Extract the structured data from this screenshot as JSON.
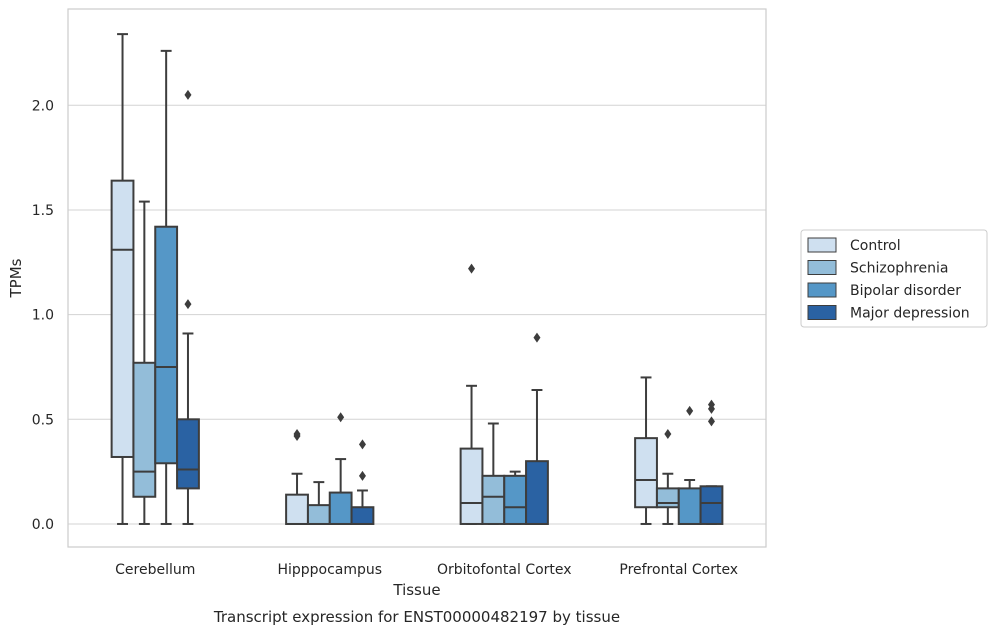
{
  "chart_data": {
    "type": "boxplot",
    "title": "Transcript expression for ENST00000482197 by tissue",
    "xlabel": "Tissue",
    "ylabel": "TPMs",
    "ylim": [
      -0.11,
      2.46
    ],
    "yticks": [
      "0.0",
      "0.5",
      "1.0",
      "1.5",
      "2.0"
    ],
    "grid": "horizontal",
    "legend_position": "right",
    "categories": [
      "Cerebellum",
      "Hipppocampus",
      "Orbitofontal Cortex",
      "Prefrontal Cortex"
    ],
    "series": [
      {
        "name": "Control",
        "color": "#cfe0f0",
        "boxes": [
          {
            "whislo": 0.0,
            "q1": 0.32,
            "med": 1.31,
            "q3": 1.64,
            "whishi": 2.34,
            "fliers": []
          },
          {
            "whislo": 0.0,
            "q1": 0.0,
            "med": 0.0,
            "q3": 0.14,
            "whishi": 0.24,
            "fliers": [
              0.42,
              0.43
            ]
          },
          {
            "whislo": 0.0,
            "q1": 0.0,
            "med": 0.1,
            "q3": 0.36,
            "whishi": 0.66,
            "fliers": [
              1.22
            ]
          },
          {
            "whislo": 0.0,
            "q1": 0.08,
            "med": 0.21,
            "q3": 0.41,
            "whishi": 0.7,
            "fliers": []
          }
        ]
      },
      {
        "name": "Schizophrenia",
        "color": "#93bdd9",
        "boxes": [
          {
            "whislo": 0.0,
            "q1": 0.13,
            "med": 0.25,
            "q3": 0.77,
            "whishi": 1.54,
            "fliers": []
          },
          {
            "whislo": 0.0,
            "q1": 0.0,
            "med": 0.0,
            "q3": 0.09,
            "whishi": 0.2,
            "fliers": []
          },
          {
            "whislo": 0.0,
            "q1": 0.0,
            "med": 0.13,
            "q3": 0.23,
            "whishi": 0.48,
            "fliers": []
          },
          {
            "whislo": 0.0,
            "q1": 0.08,
            "med": 0.1,
            "q3": 0.17,
            "whishi": 0.24,
            "fliers": [
              0.43
            ]
          }
        ]
      },
      {
        "name": "Bipolar disorder",
        "color": "#5597c7",
        "boxes": [
          {
            "whislo": 0.0,
            "q1": 0.29,
            "med": 0.75,
            "q3": 1.42,
            "whishi": 2.26,
            "fliers": []
          },
          {
            "whislo": 0.0,
            "q1": 0.0,
            "med": 0.0,
            "q3": 0.15,
            "whishi": 0.31,
            "fliers": [
              0.51
            ]
          },
          {
            "whislo": 0.0,
            "q1": 0.0,
            "med": 0.08,
            "q3": 0.23,
            "whishi": 0.25,
            "fliers": []
          },
          {
            "whislo": 0.0,
            "q1": 0.0,
            "med": 0.0,
            "q3": 0.17,
            "whishi": 0.21,
            "fliers": [
              0.54
            ]
          }
        ]
      },
      {
        "name": "Major depression",
        "color": "#2a62a3",
        "boxes": [
          {
            "whislo": 0.0,
            "q1": 0.17,
            "med": 0.26,
            "q3": 0.5,
            "whishi": 0.91,
            "fliers": [
              1.05,
              2.05
            ]
          },
          {
            "whislo": 0.0,
            "q1": 0.0,
            "med": 0.0,
            "q3": 0.08,
            "whishi": 0.16,
            "fliers": [
              0.23,
              0.38
            ]
          },
          {
            "whislo": 0.0,
            "q1": 0.0,
            "med": 0.0,
            "q3": 0.3,
            "whishi": 0.64,
            "fliers": [
              0.89
            ]
          },
          {
            "whislo": 0.0,
            "q1": 0.0,
            "med": 0.1,
            "q3": 0.18,
            "whishi": 0.18,
            "fliers": [
              0.49,
              0.55,
              0.57
            ]
          }
        ]
      }
    ]
  }
}
